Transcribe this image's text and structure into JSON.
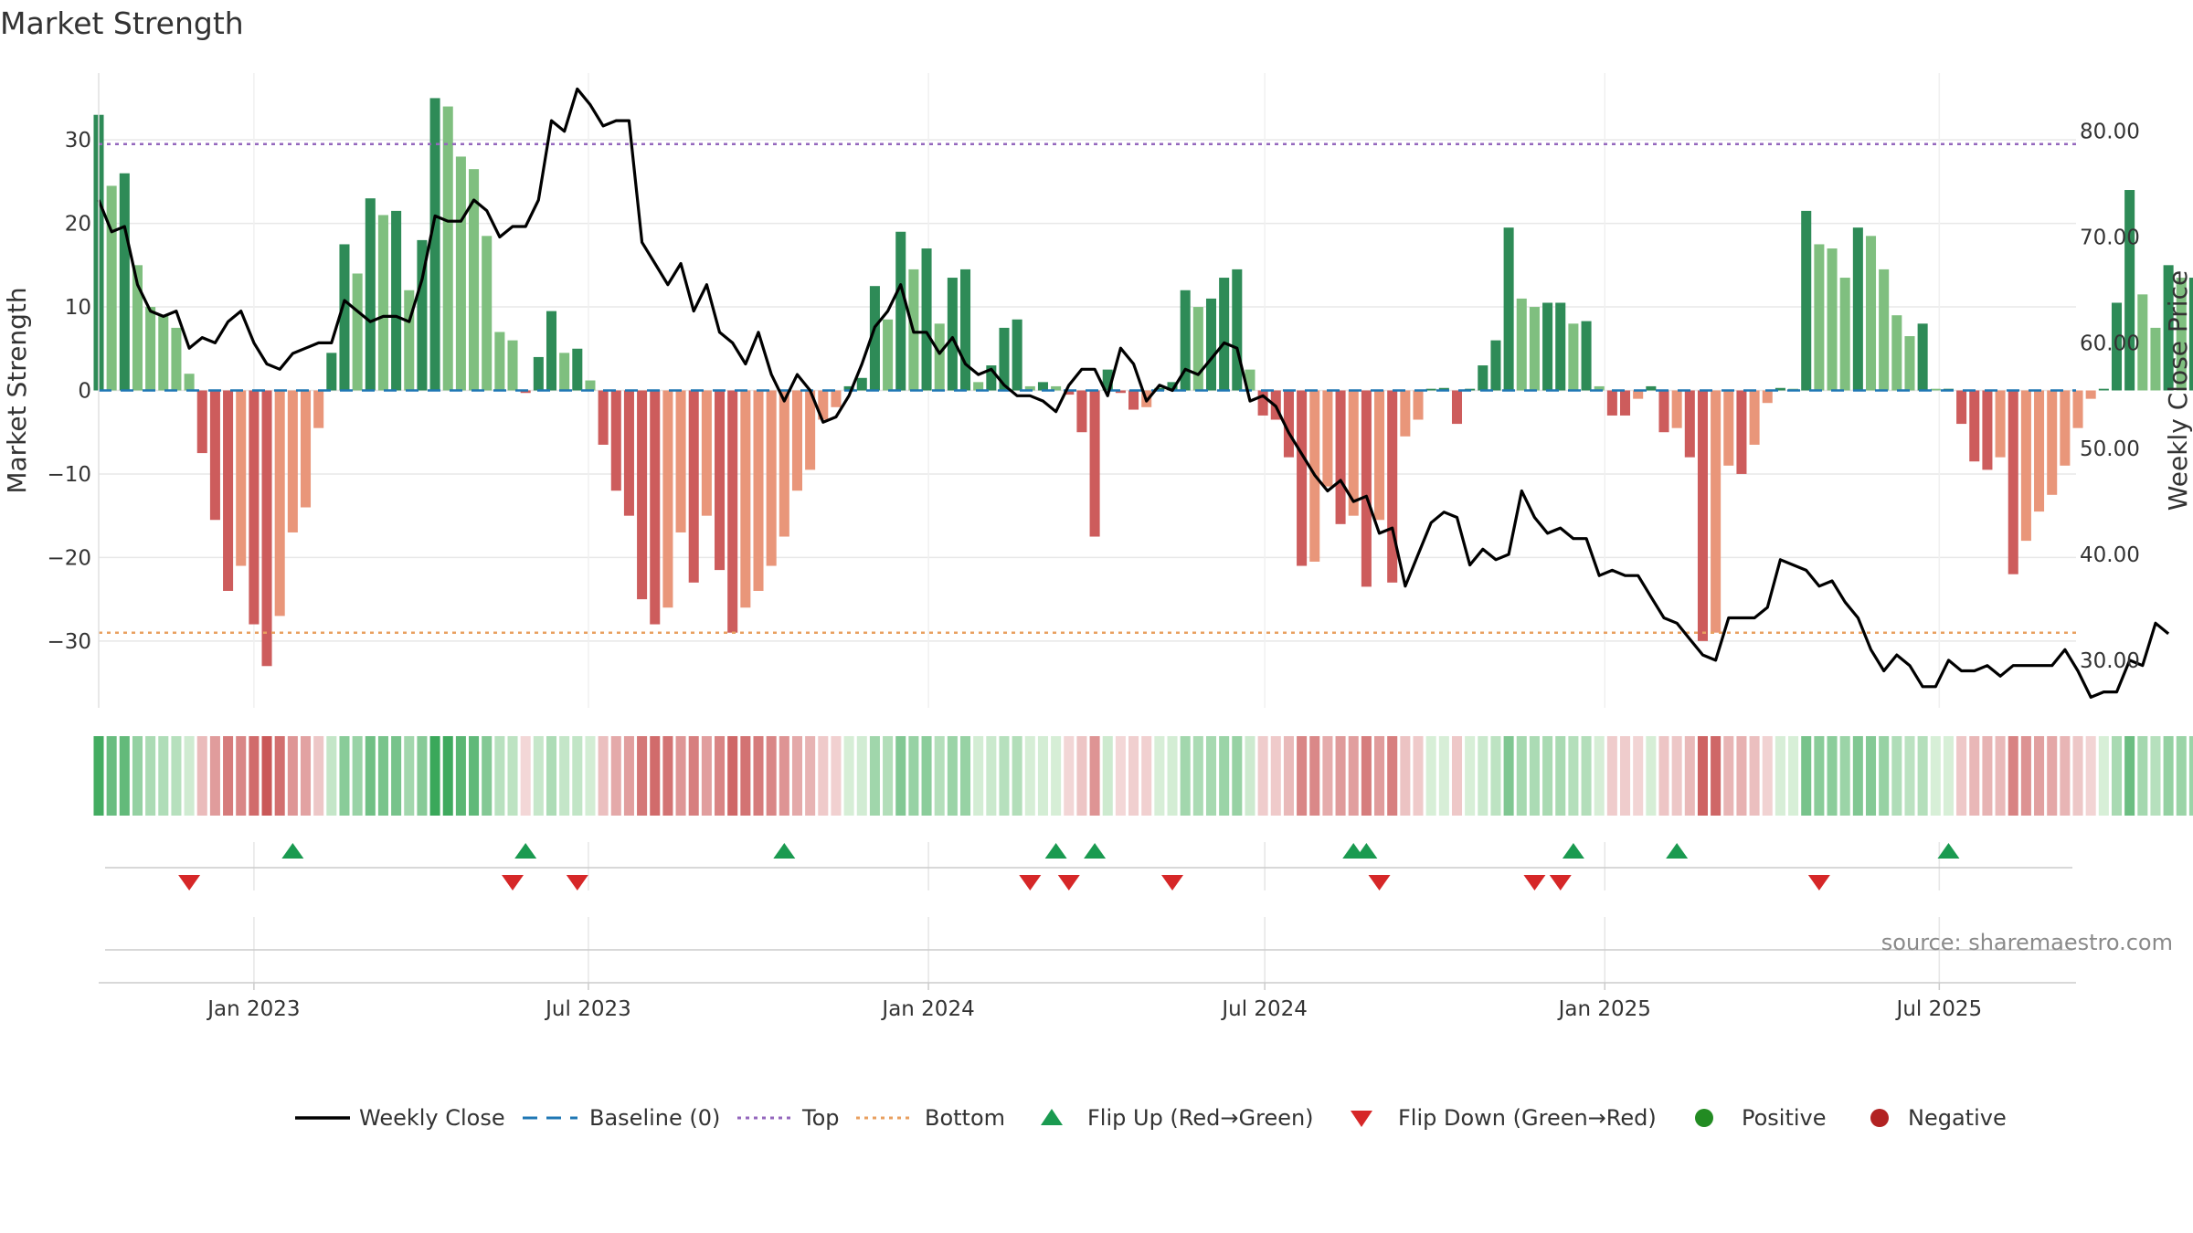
{
  "title": "Market Strength",
  "source": "source: sharemaestro.com",
  "chart_data": {
    "type": "bar",
    "title": "Market Strength",
    "ylabel": "Market Strength",
    "y2label": "Weekly Close Price",
    "ylim": [
      -38,
      38
    ],
    "y2lim": [
      25.5,
      85.5
    ],
    "yticks": [
      30,
      20,
      10,
      0,
      -10,
      -20,
      -30
    ],
    "ytick_labels": [
      "30",
      "20",
      "10",
      "0",
      "−10",
      "−20",
      "−30"
    ],
    "y2ticks": [
      80,
      70,
      60,
      50,
      40,
      30
    ],
    "y2tick_labels": [
      "80.00",
      "70.00",
      "60.00",
      "50.00",
      "40.00",
      "30.00"
    ],
    "x_start": "2022-10-09",
    "x_end": "2025-09-13",
    "xticks": [
      "2023-01-01",
      "2023-07-01",
      "2024-01-01",
      "2024-07-01",
      "2025-01-01",
      "2025-07-01"
    ],
    "xtick_labels": [
      "Jan 2023",
      "Jul 2023",
      "Jan 2024",
      "Jul 2024",
      "Jan 2025",
      "Jul 2025"
    ],
    "first_week": "2022-10-09",
    "week_days": 7,
    "top_level": 29.5,
    "bottom_level": -29,
    "grid": true,
    "legend_position": "bottom",
    "colors": {
      "pos_strong": "#2e8b57",
      "pos_weak": "#7fbf7f",
      "neg_strong": "#cd5c5c",
      "neg_weak": "#e9967a",
      "price": "#000000",
      "baseline": "#1f77b4",
      "top": "#9467bd",
      "bottom": "#e9a060",
      "flip_up": "#1a9a50",
      "flip_down": "#d62728",
      "positive": "#228b22",
      "negative": "#b22222",
      "grid": "#e8e8e8"
    },
    "strength": [
      33,
      24.5,
      26,
      15,
      10,
      9,
      7.5,
      2,
      -7.5,
      -15.5,
      -24,
      -21,
      -28,
      -33,
      -27,
      -17,
      -14,
      -4.5,
      4.5,
      17.5,
      14,
      23,
      21,
      21.5,
      12,
      18,
      35,
      34,
      28,
      26.5,
      18.5,
      7,
      6,
      -0.3,
      4,
      9.5,
      4.5,
      5,
      1.2,
      -6.5,
      -12,
      -15,
      -25,
      -28,
      -26,
      -17,
      -23,
      -15,
      -21.5,
      -29,
      -26,
      -24,
      -21,
      -17.5,
      -12,
      -9.5,
      -3.5,
      -2,
      0.5,
      1.5,
      12.5,
      8.5,
      19,
      14.5,
      17,
      8,
      13.5,
      14.5,
      1,
      3,
      7.5,
      8.5,
      0.5,
      1,
      0.5,
      -0.5,
      -5,
      -17.5,
      2.5,
      -0.3,
      -2.3,
      -2,
      0.3,
      1,
      12,
      10,
      11,
      13.5,
      14.5,
      2.5,
      -3,
      -3.5,
      -8,
      -21,
      -20.5,
      -11.5,
      -16,
      -15,
      -23.5,
      -15.5,
      -23,
      -5.5,
      -3.5,
      0.2,
      0.3,
      -4,
      0.2,
      3,
      6,
      19.5,
      11,
      10,
      10.5,
      10.5,
      8,
      8.3,
      0.5,
      -3,
      -3,
      -1,
      0.5,
      -5,
      -4.5,
      -8,
      -30,
      -29,
      -9,
      -10,
      -6.5,
      -1.5,
      0.3,
      0.2,
      21.5,
      17.5,
      17,
      13.5,
      19.5,
      18.5,
      14.5,
      9,
      6.5,
      8,
      0.2,
      0.2,
      -4,
      -8.5,
      -9.5,
      -8,
      -22,
      -18,
      -14.5,
      -12.5,
      -9,
      -4.5,
      -1,
      0.2,
      10.5,
      24,
      11.5,
      7.5,
      15,
      13.5,
      13.5,
      14,
      21.5,
      13
    ],
    "price": [
      73.5,
      70.5,
      71,
      65.5,
      63,
      62.5,
      63,
      59.5,
      60.5,
      60,
      62,
      63,
      60,
      58,
      57.5,
      59,
      59.5,
      60,
      60,
      64,
      63,
      62,
      62.5,
      62.5,
      62,
      66,
      72,
      71.5,
      71.5,
      73.5,
      72.5,
      70,
      71,
      71,
      73.5,
      81,
      80,
      84,
      82.5,
      80.5,
      81,
      81,
      69.5,
      67.5,
      65.5,
      67.5,
      63,
      65.5,
      61,
      60,
      58,
      61,
      57,
      54.5,
      57,
      55.5,
      52.5,
      53,
      55,
      58,
      61.5,
      63,
      65.5,
      61,
      61,
      59,
      60.5,
      58,
      57,
      57.5,
      56,
      55,
      55,
      54.5,
      53.5,
      56,
      57.5,
      57.5,
      55,
      59.5,
      58,
      54.5,
      56,
      55.5,
      57.5,
      57,
      58.5,
      60,
      59.5,
      54.5,
      55,
      54,
      51.5,
      49.5,
      47.5,
      46,
      47,
      45,
      45.5,
      42,
      42.5,
      37,
      40,
      43,
      44,
      43.5,
      39,
      40.5,
      39.5,
      40,
      46,
      43.5,
      42,
      42.5,
      41.5,
      41.5,
      38,
      38.5,
      38,
      38,
      36,
      34,
      33.5,
      32,
      30.5,
      30,
      34,
      34,
      34,
      35,
      39.5,
      39,
      38.5,
      37,
      37.5,
      35.5,
      34,
      31,
      29,
      30.5,
      29.5,
      27.5,
      27.5,
      30,
      29,
      29,
      29.5,
      28.5,
      29.5,
      29.5,
      29.5,
      29.5,
      31,
      29,
      26.5,
      27,
      27,
      30,
      29.5,
      33.5,
      32.5
    ],
    "heat_strip": [
      33,
      24.5,
      26,
      15,
      10,
      9,
      7.5,
      2,
      -7.5,
      -15.5,
      -24,
      -21,
      -28,
      -33,
      -27,
      -17,
      -14,
      -4.5,
      4.5,
      17.5,
      14,
      23,
      21,
      21.5,
      12,
      18,
      35,
      34,
      28,
      26.5,
      18.5,
      7,
      6,
      -0.3,
      4,
      9.5,
      4.5,
      5,
      1.2,
      -6.5,
      -12,
      -15,
      -25,
      -28,
      -26,
      -17,
      -23,
      -15,
      -21.5,
      -29,
      -26,
      -24,
      -21,
      -17.5,
      -12,
      -9.5,
      -3.5,
      -2,
      0.5,
      1.5,
      12.5,
      8.5,
      19,
      14.5,
      17,
      8,
      13.5,
      14.5,
      1,
      3,
      7.5,
      8.5,
      0.5,
      1,
      0.5,
      -0.5,
      -5,
      -17.5,
      2.5,
      -0.3,
      -2.3,
      -2,
      0.3,
      1,
      12,
      10,
      11,
      13.5,
      14.5,
      2.5,
      -3,
      -3.5,
      -8,
      -21,
      -20.5,
      -11.5,
      -16,
      -15,
      -23.5,
      -15.5,
      -23,
      -5.5,
      -3.5,
      0.2,
      0.3,
      -4,
      0.2,
      3,
      6,
      19.5,
      11,
      10,
      10.5,
      10.5,
      8,
      8.3,
      0.5,
      -3,
      -3,
      -1,
      0.5,
      -5,
      -4.5,
      -8,
      -30,
      -29,
      -9,
      -10,
      -6.5,
      -1.5,
      0.3,
      0.2,
      21.5,
      17.5,
      17,
      13.5,
      19.5,
      18.5,
      14.5,
      9,
      6.5,
      8,
      0.2,
      0.2,
      -4,
      -8.5,
      -9.5,
      -8,
      -22,
      -18,
      -14.5,
      -12.5,
      -9,
      -4.5,
      -1,
      0.2,
      10.5,
      24,
      11.5,
      7.5,
      15,
      13.5,
      13.5,
      14,
      21.5,
      13
    ],
    "flip_up": [
      "2023-01-22",
      "2023-05-28",
      "2023-10-15",
      "2024-03-10",
      "2024-03-31",
      "2024-08-18",
      "2024-08-25",
      "2024-12-15",
      "2025-02-09",
      "2025-07-06"
    ],
    "flip_down": [
      "2022-11-27",
      "2023-05-21",
      "2023-06-25",
      "2024-02-25",
      "2024-03-17",
      "2024-05-12",
      "2024-09-01",
      "2024-11-24",
      "2024-12-08",
      "2025-04-27"
    ],
    "legend": [
      {
        "label": "Weekly Close",
        "kind": "line"
      },
      {
        "label": "Baseline (0)",
        "kind": "dash"
      },
      {
        "label": "Top",
        "kind": "dot-top"
      },
      {
        "label": "Bottom",
        "kind": "dot-bottom"
      },
      {
        "label": "Flip Up (Red→Green)",
        "kind": "tri-up"
      },
      {
        "label": "Flip Down (Green→Red)",
        "kind": "tri-down"
      },
      {
        "label": "Positive",
        "kind": "circle-pos"
      },
      {
        "label": "Negative",
        "kind": "circle-neg"
      }
    ]
  }
}
